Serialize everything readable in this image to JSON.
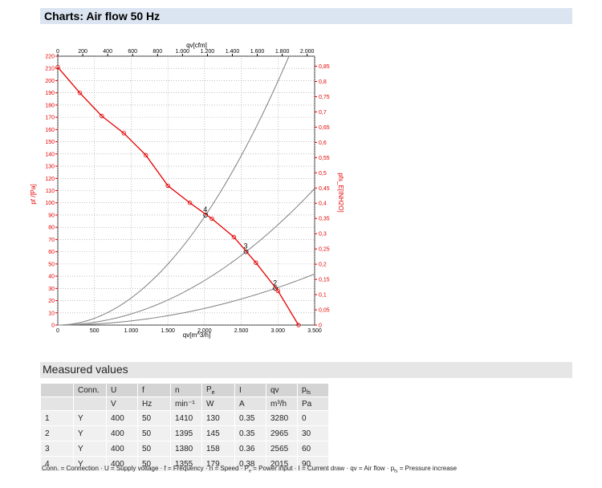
{
  "header": {
    "title": "Charts: Air flow 50 Hz"
  },
  "chart_data": {
    "type": "line",
    "xlabel": "qv[m^3/h]",
    "ylabel": "pf /[Pa]",
    "x2label": "qv[cfm]",
    "y2label": "pfs_E[INH2O]",
    "xlim": [
      0,
      3500
    ],
    "ylim": [
      0,
      220
    ],
    "x2lim": [
      0,
      2060
    ],
    "y2lim": [
      0,
      0.883
    ],
    "xticks": [
      0,
      500,
      {
        "value": 1000,
        "label": "1.000"
      },
      {
        "value": 1500,
        "label": "1.500"
      },
      {
        "value": 2000,
        "label": "2.000"
      },
      {
        "value": 2500,
        "label": "2.500"
      },
      {
        "value": 3000,
        "label": "3.000"
      },
      {
        "value": 3500,
        "label": "3.500"
      }
    ],
    "yticks": [
      0,
      10,
      20,
      30,
      40,
      50,
      60,
      70,
      80,
      90,
      100,
      110,
      120,
      130,
      140,
      150,
      160,
      170,
      180,
      190,
      200,
      210,
      220
    ],
    "x2ticks": [
      0,
      200,
      400,
      600,
      800,
      {
        "value": 1000,
        "label": "1.000"
      },
      {
        "value": 1200,
        "label": "1.200"
      },
      {
        "value": 1400,
        "label": "1.400"
      },
      {
        "value": 1600,
        "label": "1.600"
      },
      {
        "value": 1800,
        "label": "1.800"
      },
      {
        "value": 2000,
        "label": "2.000"
      }
    ],
    "y2ticks": [
      0,
      {
        "value": 0.05,
        "label": "0,05"
      },
      {
        "value": 0.1,
        "label": "0,1"
      },
      {
        "value": 0.15,
        "label": "0,15"
      },
      {
        "value": 0.2,
        "label": "0,2"
      },
      {
        "value": 0.25,
        "label": "0,25"
      },
      {
        "value": 0.3,
        "label": "0,3"
      },
      {
        "value": 0.35,
        "label": "0,35"
      },
      {
        "value": 0.4,
        "label": "0,4"
      },
      {
        "value": 0.45,
        "label": "0,45"
      },
      {
        "value": 0.5,
        "label": "0,5"
      },
      {
        "value": 0.55,
        "label": "0,55"
      },
      {
        "value": 0.6,
        "label": "0,6"
      },
      {
        "value": 0.65,
        "label": "0,65"
      },
      {
        "value": 0.7,
        "label": "0,7"
      },
      {
        "value": 0.75,
        "label": "0,75"
      },
      {
        "value": 0.8,
        "label": "0,8"
      },
      {
        "value": 0.85,
        "label": "0,85"
      }
    ],
    "grid": true,
    "x": [
      0,
      300,
      600,
      900,
      1200,
      1500,
      1800,
      2100,
      2400,
      2700,
      3000,
      3280
    ],
    "series": [
      {
        "color": "#e60000",
        "values": [
          211,
          190,
          171,
          157,
          139,
          114,
          100,
          87,
          72,
          51,
          28,
          0
        ]
      }
    ],
    "operating_points": {
      "color": "#7f7f7f",
      "labels": [
        "4",
        "3",
        "2"
      ],
      "x": [
        2015,
        2565,
        2965
      ],
      "values": [
        90,
        60,
        30
      ]
    }
  },
  "measured": {
    "title": "Measured values",
    "header": [
      {
        "text": ""
      },
      {
        "text": "Conn."
      },
      {
        "text": "U"
      },
      {
        "text": "f"
      },
      {
        "text": "n"
      },
      {
        "text": "P",
        "sub": "e"
      },
      {
        "text": "I"
      },
      {
        "text": "qv"
      },
      {
        "text": "p",
        "sub": "fs"
      }
    ],
    "units": [
      "",
      "",
      "V",
      "Hz",
      "min⁻¹",
      "W",
      "A",
      "m³/h",
      "Pa"
    ],
    "rows": [
      [
        "1",
        "Y",
        "400",
        "50",
        "1410",
        "130",
        "0.35",
        "3280",
        "0"
      ],
      [
        "2",
        "Y",
        "400",
        "50",
        "1395",
        "145",
        "0.35",
        "2965",
        "30"
      ],
      [
        "3",
        "Y",
        "400",
        "50",
        "1380",
        "158",
        "0.36",
        "2565",
        "60"
      ],
      [
        "4",
        "Y",
        "400",
        "50",
        "1355",
        "179",
        "0.38",
        "2015",
        "90"
      ]
    ]
  },
  "footnote": {
    "separator": " · ",
    "items": [
      {
        "text": "Conn. = Connection"
      },
      {
        "text": "U = Supply voltage"
      },
      {
        "text": "f = Frequency"
      },
      {
        "text": "n = Speed"
      },
      {
        "text": "P",
        "sub": "e",
        "post": " = Power input"
      },
      {
        "text": "I = Current draw"
      },
      {
        "text": "qv = Air flow"
      },
      {
        "text": "p",
        "sub": "fs",
        "post": " = Pressure increase"
      }
    ]
  }
}
